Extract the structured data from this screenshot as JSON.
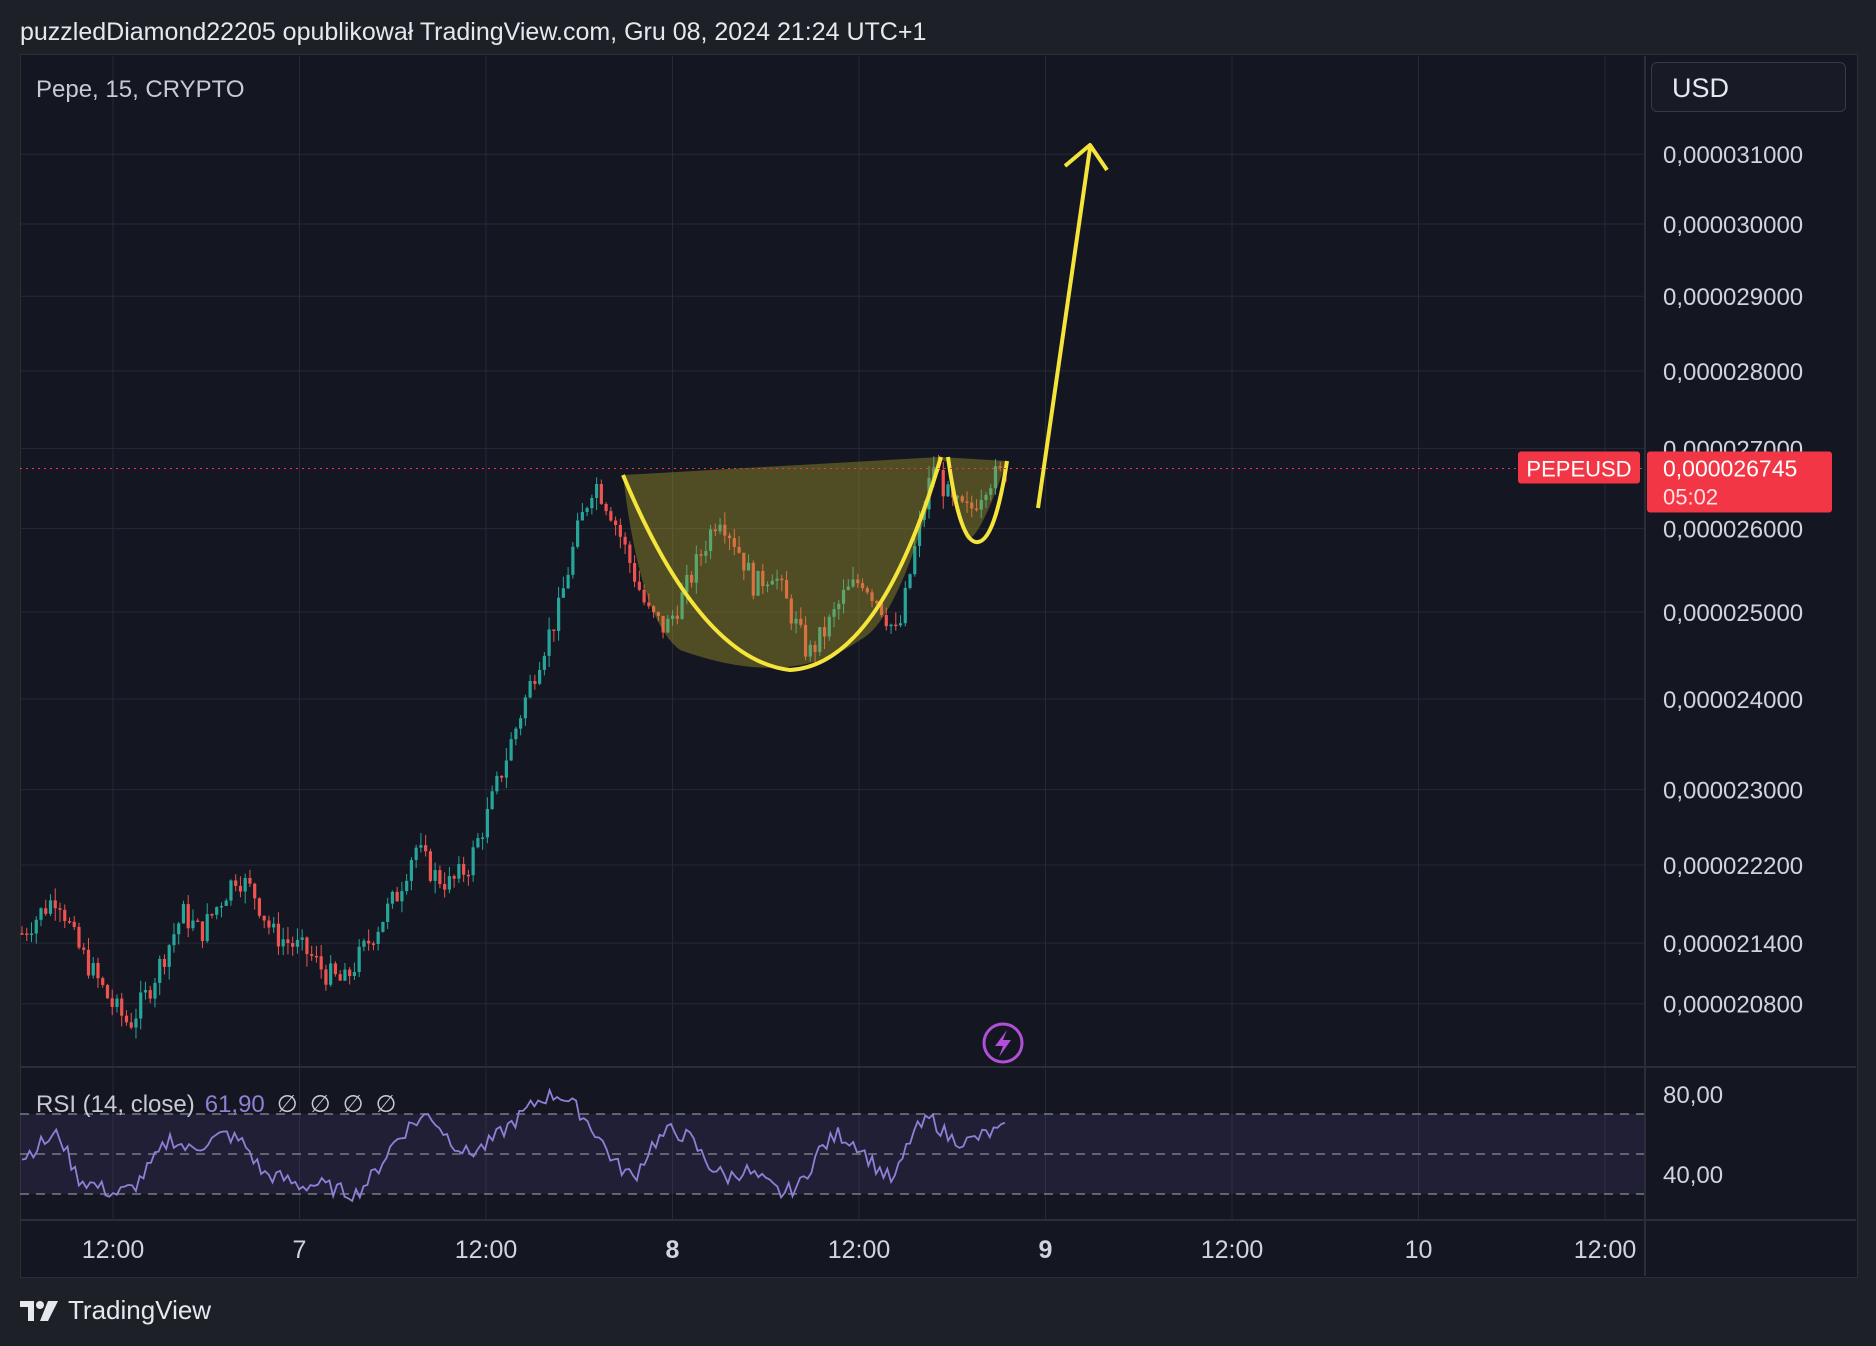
{
  "header": {
    "text": "puzzledDiamond22205 opublikował TradingView.com, Gru 08, 2024 21:24 UTC+1"
  },
  "instrument": {
    "label": "Pepe, 15, CRYPTO"
  },
  "currency": {
    "label": "USD"
  },
  "price_label": {
    "symbol": "PEPEUSD",
    "price": "0,000026745",
    "countdown": "05:02"
  },
  "rsi": {
    "title": "RSI (14, close)",
    "value": "61,90",
    "nulls": [
      "∅",
      "∅",
      "∅",
      "∅"
    ],
    "ticks": [
      "80,00",
      "40,00"
    ]
  },
  "footer": {
    "brand": "TradingView"
  },
  "colors": {
    "up": "#26a69a",
    "down": "#ef5350",
    "drawing": "#f5e53a",
    "rsi_line": "#8f7fd6",
    "price_tag": "#f23645"
  },
  "icons": [
    "bolt-icon",
    "tradingview-logo-icon"
  ],
  "chart_data": {
    "type": "candlestick",
    "title": "Pepe, 15, CRYPTO",
    "price_scale": {
      "currency": "USD",
      "type": "log",
      "ticks": [
        "0,000031000",
        "0,000030000",
        "0,000029000",
        "0,000028000",
        "0,000027000",
        "0,000026000",
        "0,000025000",
        "0,000024000",
        "0,000023000",
        "0,000022200",
        "0,000021400",
        "0,000020800"
      ],
      "range": [
        2.02e-05,
        3.18e-05
      ]
    },
    "time_scale": {
      "ticks": [
        "12:00",
        "7",
        "12:00",
        "8",
        "12:00",
        "9",
        "12:00",
        "10",
        "12:00"
      ],
      "bold_ticks": [
        "8",
        "9"
      ]
    },
    "last_price": 2.6745e-05,
    "price_series_close_approx": [
      2.15e-05,
      2.17e-05,
      2.19e-05,
      2.14e-05,
      2.11e-05,
      2.08e-05,
      2.06e-05,
      2.09e-05,
      2.13e-05,
      2.17e-05,
      2.15e-05,
      2.18e-05,
      2.21e-05,
      2.19e-05,
      2.15e-05,
      2.14e-05,
      2.13e-05,
      2.11e-05,
      2.1e-05,
      2.13e-05,
      2.16e-05,
      2.19e-05,
      2.24e-05,
      2.21e-05,
      2.2e-05,
      2.22e-05,
      2.27e-05,
      2.33e-05,
      2.39e-05,
      2.45e-05,
      2.5e-05,
      2.59e-05,
      2.66e-05,
      2.62e-05,
      2.56e-05,
      2.5e-05,
      2.48e-05,
      2.52e-05,
      2.57e-05,
      2.62e-05,
      2.58e-05,
      2.53e-05,
      2.55e-05,
      2.5e-05,
      2.45e-05,
      2.48e-05,
      2.52e-05,
      2.54e-05,
      2.51e-05,
      2.47e-05,
      2.58e-05,
      2.68e-05,
      2.63e-05,
      2.62e-05,
      2.66e-05,
      2.67e-05
    ],
    "annotations": [
      "cup-and-handle",
      "breakout-arrow-up"
    ],
    "rsi": {
      "period": 14,
      "source": "close",
      "value": 61.9,
      "bands": [
        70,
        50,
        30
      ],
      "ticks": [
        80,
        40
      ],
      "series_approx": [
        48,
        55,
        60,
        38,
        34,
        30,
        33,
        45,
        58,
        52,
        56,
        60,
        55,
        40,
        38,
        34,
        35,
        32,
        30,
        40,
        55,
        65,
        70,
        58,
        50,
        54,
        62,
        70,
        78,
        80,
        72,
        60,
        45,
        38,
        55,
        62,
        58,
        45,
        38,
        42,
        36,
        30,
        35,
        52,
        60,
        55,
        44,
        36,
        60,
        68,
        58,
        56,
        60,
        62
      ]
    }
  }
}
